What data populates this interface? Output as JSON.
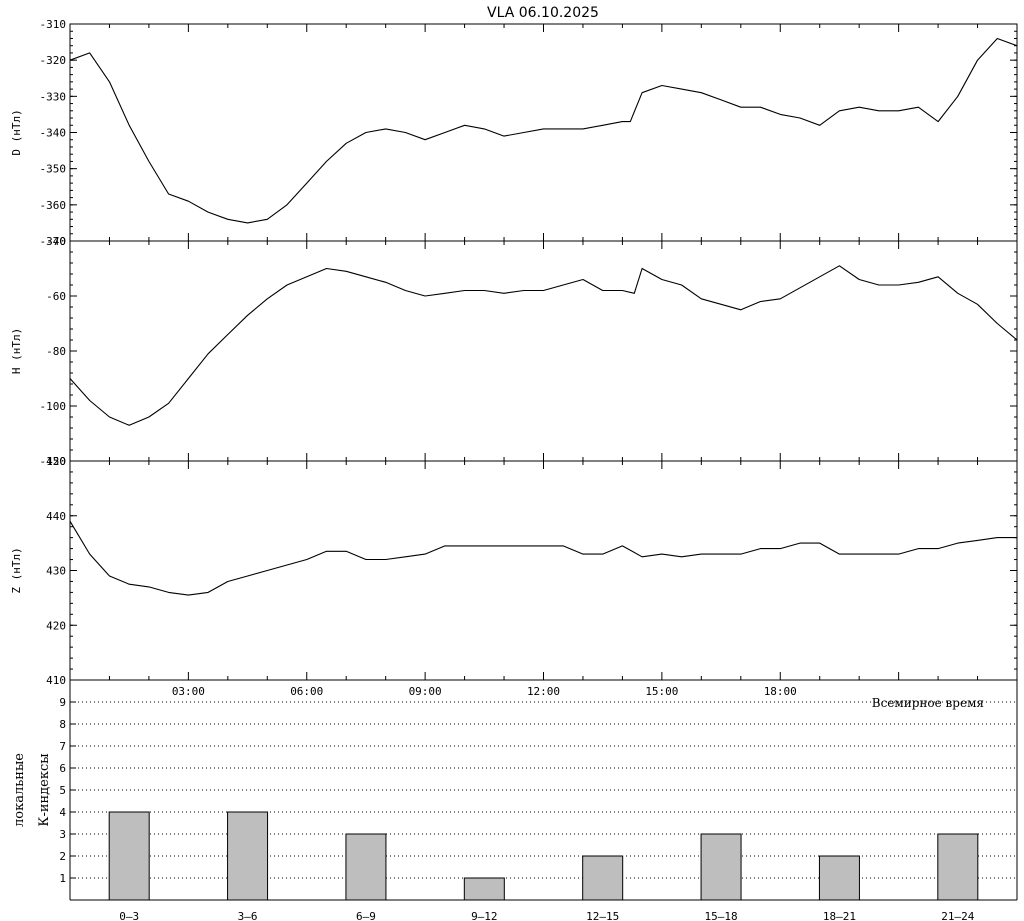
{
  "title": "VLA   06.10.2025",
  "chart_data": [
    {
      "type": "line",
      "ylabel": "D (нТл)",
      "ylim": [
        -370,
        -310
      ],
      "yticks": [
        -370,
        -360,
        -350,
        -340,
        -330,
        -320,
        -310
      ],
      "xlim": [
        0,
        24
      ],
      "series": [
        {
          "x": [
            0,
            0.5,
            1,
            1.5,
            2,
            2.5,
            3,
            3.5,
            4,
            4.5,
            5,
            5.5,
            6,
            6.5,
            7,
            7.5,
            8,
            8.5,
            9,
            9.5,
            10,
            10.5,
            11,
            11.5,
            12,
            12.5,
            13,
            13.5,
            14,
            14.2,
            14.5,
            15,
            15.5,
            16,
            16.5,
            17,
            17.5,
            18,
            18.5,
            19,
            19.5,
            20,
            20.5,
            21,
            21.5,
            22,
            22.5,
            23,
            23.5,
            24
          ],
          "y": [
            -320,
            -318,
            -326,
            -338,
            -348,
            -357,
            -359,
            -362,
            -364,
            -365,
            -364,
            -360,
            -354,
            -348,
            -343,
            -340,
            -339,
            -340,
            -342,
            -340,
            -338,
            -339,
            -341,
            -340,
            -339,
            -339,
            -339,
            -338,
            -337,
            -337,
            -329,
            -327,
            -328,
            -329,
            -331,
            -333,
            -333,
            -335,
            -336,
            -338,
            -334,
            -333,
            -334,
            -334,
            -333,
            -337,
            -330,
            -320,
            -314,
            -316
          ]
        }
      ]
    },
    {
      "type": "line",
      "ylabel": "H (нТл)",
      "ylim": [
        -120,
        -40
      ],
      "yticks": [
        -120,
        -100,
        -80,
        -60,
        -40
      ],
      "xlim": [
        0,
        24
      ],
      "series": [
        {
          "x": [
            0,
            0.5,
            1,
            1.5,
            2,
            2.5,
            3,
            3.5,
            4,
            4.5,
            5,
            5.5,
            6,
            6.5,
            7,
            7.5,
            8,
            8.5,
            9,
            9.5,
            10,
            10.5,
            11,
            11.5,
            12,
            12.5,
            13,
            13.5,
            14,
            14.3,
            14.5,
            15,
            15.5,
            16,
            16.5,
            17,
            17.5,
            18,
            18.5,
            19,
            19.5,
            20,
            20.5,
            21,
            21.5,
            22,
            22.5,
            23,
            23.5,
            24
          ],
          "y": [
            -90,
            -98,
            -104,
            -107,
            -104,
            -99,
            -90,
            -81,
            -74,
            -67,
            -61,
            -56,
            -53,
            -50,
            -51,
            -53,
            -55,
            -58,
            -60,
            -59,
            -58,
            -58,
            -59,
            -58,
            -58,
            -56,
            -54,
            -58,
            -58,
            -59,
            -50,
            -54,
            -56,
            -61,
            -63,
            -65,
            -62,
            -61,
            -57,
            -53,
            -49,
            -54,
            -56,
            -56,
            -55,
            -53,
            -59,
            -63,
            -70,
            -76
          ]
        }
      ]
    },
    {
      "type": "line",
      "ylabel": "Z (нТл)",
      "ylim": [
        410,
        450
      ],
      "yticks": [
        410,
        420,
        430,
        440,
        450
      ],
      "xlim": [
        0,
        24
      ],
      "series": [
        {
          "x": [
            0,
            0.5,
            1,
            1.5,
            2,
            2.5,
            3,
            3.5,
            4,
            4.5,
            5,
            5.5,
            6,
            6.5,
            7,
            7.5,
            8,
            8.5,
            9,
            9.5,
            10,
            10.5,
            11,
            11.5,
            12,
            12.5,
            13,
            13.5,
            14,
            14.5,
            15,
            15.5,
            16,
            16.5,
            17,
            17.5,
            18,
            18.5,
            19,
            19.5,
            20,
            20.5,
            21,
            21.5,
            22,
            22.5,
            23,
            23.5,
            24
          ],
          "y": [
            439,
            433,
            429,
            427.5,
            427,
            426,
            425.5,
            426,
            428,
            429,
            430,
            431,
            432,
            433.5,
            433.5,
            432,
            432,
            432.5,
            433,
            434.5,
            434.5,
            434.5,
            434.5,
            434.5,
            434.5,
            434.5,
            433,
            433,
            434.5,
            432.5,
            433,
            432.5,
            433,
            433,
            433,
            434,
            434,
            435,
            435,
            433,
            433,
            433,
            433,
            434,
            434,
            435,
            435.5,
            436,
            436
          ]
        }
      ]
    },
    {
      "type": "bar",
      "ylabel_line1": "локальные",
      "ylabel_line2": "К-индексы",
      "ylim": [
        0,
        10
      ],
      "yticks": [
        1,
        2,
        3,
        4,
        5,
        6,
        7,
        8,
        9
      ],
      "categories": [
        "0–3",
        "3–6",
        "6–9",
        "9–12",
        "12–15",
        "15–18",
        "18–21",
        "21–24"
      ],
      "values": [
        4,
        4,
        3,
        1,
        2,
        3,
        2,
        3
      ]
    }
  ],
  "x_axis": {
    "tick_labels": [
      "03:00",
      "06:00",
      "09:00",
      "12:00",
      "15:00",
      "18:00"
    ],
    "tick_values": [
      3,
      6,
      9,
      12,
      15,
      18
    ],
    "label": "Всемирное время"
  },
  "colors": {
    "line": "#000000",
    "bar_fill": "#bebebe",
    "bar_stroke": "#000000",
    "grid": "#000000"
  }
}
